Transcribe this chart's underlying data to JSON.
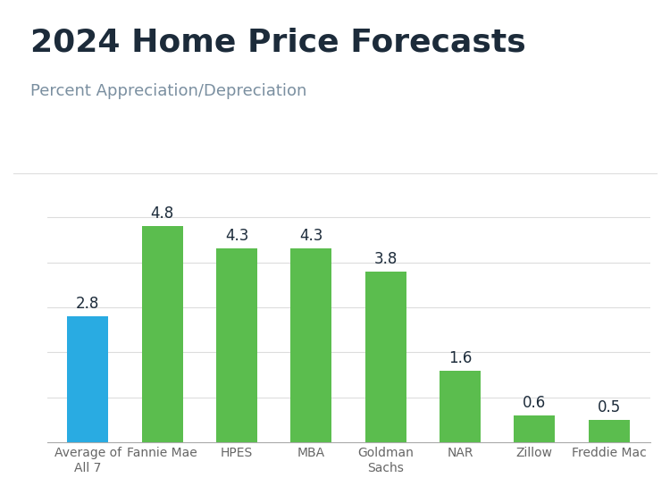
{
  "title": "2024 Home Price Forecasts",
  "subtitle": "Percent Appreciation/Depreciation",
  "categories": [
    "Average of\nAll 7",
    "Fannie Mae",
    "HPES",
    "MBA",
    "Goldman\nSachs",
    "NAR",
    "Zillow",
    "Freddie Mac"
  ],
  "values": [
    2.8,
    4.8,
    4.3,
    4.3,
    3.8,
    1.6,
    0.6,
    0.5
  ],
  "bar_colors": [
    "#29ABE2",
    "#5BBD4E",
    "#5BBD4E",
    "#5BBD4E",
    "#5BBD4E",
    "#5BBD4E",
    "#5BBD4E",
    "#5BBD4E"
  ],
  "title_fontsize": 26,
  "subtitle_fontsize": 13,
  "tick_fontsize": 10,
  "value_fontsize": 12,
  "background_color": "#FFFFFF",
  "top_stripe_color": "#29ABE2",
  "ylim": [
    0,
    5.8
  ],
  "grid_color": "#DDDDDD",
  "title_color": "#1C2B3A",
  "subtitle_color": "#7A8FA0",
  "tick_label_color": "#666666",
  "bar_width": 0.55
}
